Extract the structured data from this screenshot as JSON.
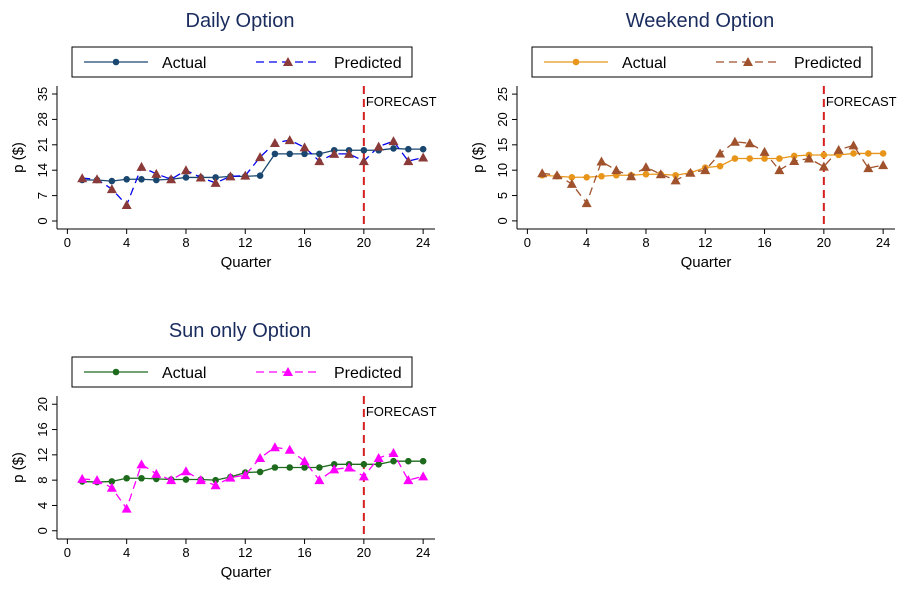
{
  "chart_data": [
    {
      "type": "line",
      "title": "Daily Option",
      "xlabel": "Quarter",
      "ylabel": "p ($)",
      "x": [
        1,
        2,
        3,
        4,
        5,
        6,
        7,
        8,
        9,
        10,
        11,
        12,
        13,
        14,
        15,
        16,
        17,
        18,
        19,
        20,
        21,
        22,
        23,
        24
      ],
      "series": [
        {
          "name": "Actual",
          "color": "#1a476f",
          "marker": "circle",
          "marker_color": "#1a476f",
          "dash": false,
          "values": [
            11.3,
            11.3,
            11,
            11.5,
            11.5,
            11.3,
            11.5,
            12,
            12,
            12,
            12.3,
            12.3,
            12.5,
            18.5,
            18.5,
            18.5,
            18.5,
            19.5,
            19.5,
            19.5,
            19.5,
            20,
            19.8,
            19.8
          ]
        },
        {
          "name": "Predicted",
          "color": "#0000ee",
          "marker": "triangle",
          "marker_color": "#8b3a3a",
          "dash": true,
          "values": [
            11.8,
            11.5,
            8.8,
            4.4,
            14.9,
            13,
            11.5,
            14,
            12,
            10.5,
            12.3,
            12.5,
            17.6,
            21.5,
            22.3,
            20.3,
            16.5,
            18.5,
            18.5,
            16.5,
            20.5,
            22,
            16.5,
            17.5
          ]
        }
      ],
      "xlim": [
        -0.7,
        24.8
      ],
      "xticks": [
        0,
        4,
        8,
        12,
        16,
        20,
        24
      ],
      "ylim": [
        -2.2,
        37.2
      ],
      "yticks": [
        0,
        7,
        14,
        21,
        28,
        35
      ],
      "forecast_x": 20,
      "annotation": "FORECAST"
    },
    {
      "type": "line",
      "title": "Weekend Option",
      "xlabel": "Quarter",
      "ylabel": "p ($)",
      "x": [
        1,
        2,
        3,
        4,
        5,
        6,
        7,
        8,
        9,
        10,
        11,
        12,
        13,
        14,
        15,
        16,
        17,
        18,
        19,
        20,
        21,
        22,
        23,
        24
      ],
      "series": [
        {
          "name": "Actual",
          "color": "#e8961b",
          "marker": "circle",
          "marker_color": "#e8961b",
          "dash": false,
          "values": [
            9,
            8.8,
            8.6,
            8.6,
            8.8,
            9,
            9,
            9.2,
            9.2,
            9,
            9.5,
            10.5,
            10.8,
            12.3,
            12.3,
            12.3,
            12.3,
            12.8,
            13,
            13,
            13,
            13.3,
            13.3,
            13.3
          ]
        },
        {
          "name": "Predicted",
          "color": "#a0522d",
          "marker": "triangle",
          "marker_color": "#a0522d",
          "dash": true,
          "values": [
            9.4,
            9,
            7.3,
            3.5,
            11.7,
            10,
            8.8,
            10.6,
            9.2,
            8,
            9.5,
            10,
            13.3,
            15.6,
            15.3,
            13.6,
            10,
            11.8,
            12.3,
            10.7,
            14,
            14.9,
            10.4,
            11
          ]
        }
      ],
      "xlim": [
        -0.7,
        24.8
      ],
      "xticks": [
        0,
        4,
        8,
        12,
        16,
        20,
        24
      ],
      "ylim": [
        -1.6,
        26.6
      ],
      "yticks": [
        0,
        5,
        10,
        15,
        20,
        25
      ],
      "forecast_x": 20,
      "annotation": "FORECAST"
    },
    {
      "type": "line",
      "title": "Sun only Option",
      "xlabel": "Quarter",
      "ylabel": "p ($)",
      "x": [
        1,
        2,
        3,
        4,
        5,
        6,
        7,
        8,
        9,
        10,
        11,
        12,
        13,
        14,
        15,
        16,
        17,
        18,
        19,
        20,
        21,
        22,
        23,
        24
      ],
      "series": [
        {
          "name": "Actual",
          "color": "#1e6b1e",
          "marker": "circle",
          "marker_color": "#1e6b1e",
          "dash": false,
          "values": [
            7.8,
            7.7,
            7.8,
            8.3,
            8.3,
            8.2,
            8.1,
            8.1,
            8.1,
            8,
            8.5,
            9.2,
            9.3,
            10,
            10,
            10,
            10,
            10.5,
            10.5,
            10.5,
            10.5,
            11,
            11,
            11
          ]
        },
        {
          "name": "Predicted",
          "color": "#ff00ff",
          "marker": "triangle",
          "marker_color": "#ff00ff",
          "dash": true,
          "values": [
            8.2,
            8,
            6.8,
            3.5,
            10.5,
            9,
            8,
            9.4,
            8,
            7.2,
            8.4,
            8.8,
            11.5,
            13.2,
            12.8,
            11,
            8,
            9.7,
            10,
            8.6,
            11.5,
            12.3,
            8,
            8.6
          ]
        }
      ],
      "xlim": [
        -0.7,
        24.8
      ],
      "xticks": [
        0,
        4,
        8,
        12,
        16,
        20,
        24
      ],
      "ylim": [
        -1.3,
        21.3
      ],
      "yticks": [
        0,
        4,
        8,
        12,
        16,
        20
      ],
      "forecast_x": 20,
      "annotation": "FORECAST"
    }
  ]
}
